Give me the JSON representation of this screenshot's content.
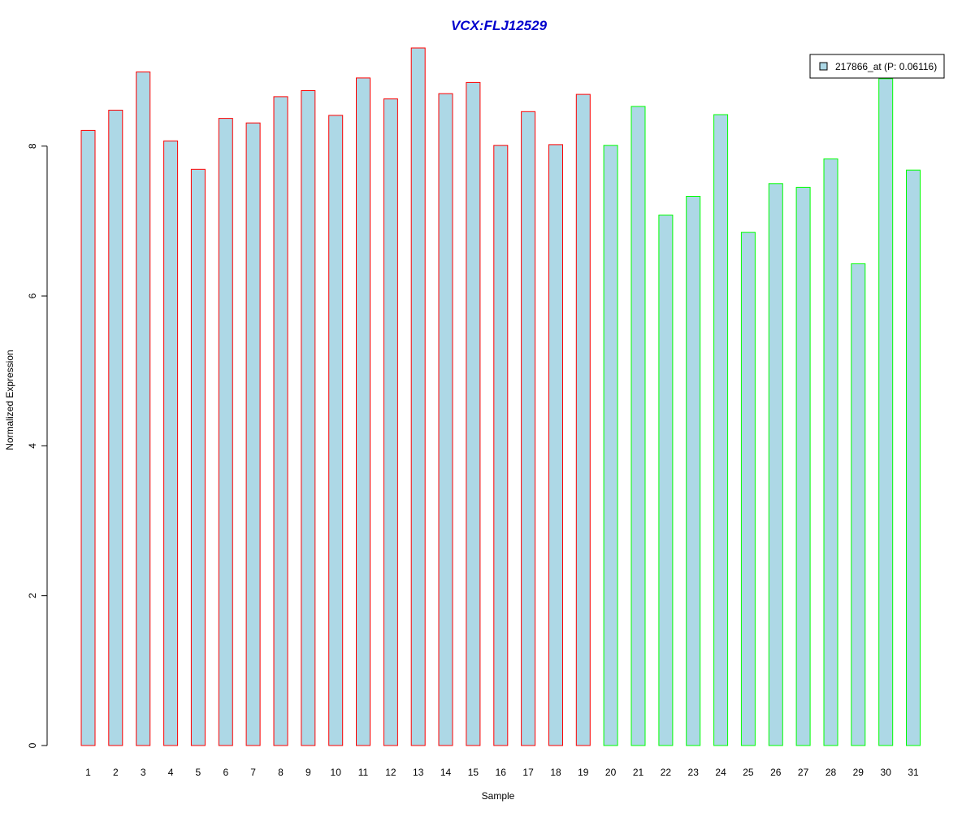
{
  "chart_data": {
    "type": "bar",
    "title": "VCX:FLJ12529",
    "xlabel": "Sample",
    "ylabel": "Normalized Expression",
    "categories": [
      "1",
      "2",
      "3",
      "4",
      "5",
      "6",
      "7",
      "8",
      "9",
      "10",
      "11",
      "12",
      "13",
      "14",
      "15",
      "16",
      "17",
      "18",
      "19",
      "20",
      "21",
      "22",
      "23",
      "24",
      "25",
      "26",
      "27",
      "28",
      "29",
      "30",
      "31"
    ],
    "series": [
      {
        "name": "217866_at (P: 0.06116)",
        "values": [
          8.21,
          8.48,
          8.99,
          8.07,
          7.69,
          8.37,
          8.31,
          8.66,
          8.74,
          8.41,
          8.91,
          8.63,
          9.31,
          8.7,
          8.85,
          8.01,
          8.46,
          8.02,
          8.69,
          8.01,
          8.53,
          7.08,
          7.33,
          8.42,
          6.85,
          7.5,
          7.45,
          7.83,
          6.43,
          8.9,
          7.68
        ]
      }
    ],
    "group_sizes": [
      19,
      12
    ],
    "ylim": [
      0,
      9.31
    ],
    "yticks": [
      0,
      2,
      4,
      6,
      8
    ],
    "grid": false,
    "legend_position": "top-right",
    "colors": {
      "bar_fill": "#add8e6",
      "group1_border": "#ff0000",
      "group2_border": "#00ff00",
      "title": "#0000cd",
      "axis": "#000000"
    }
  }
}
